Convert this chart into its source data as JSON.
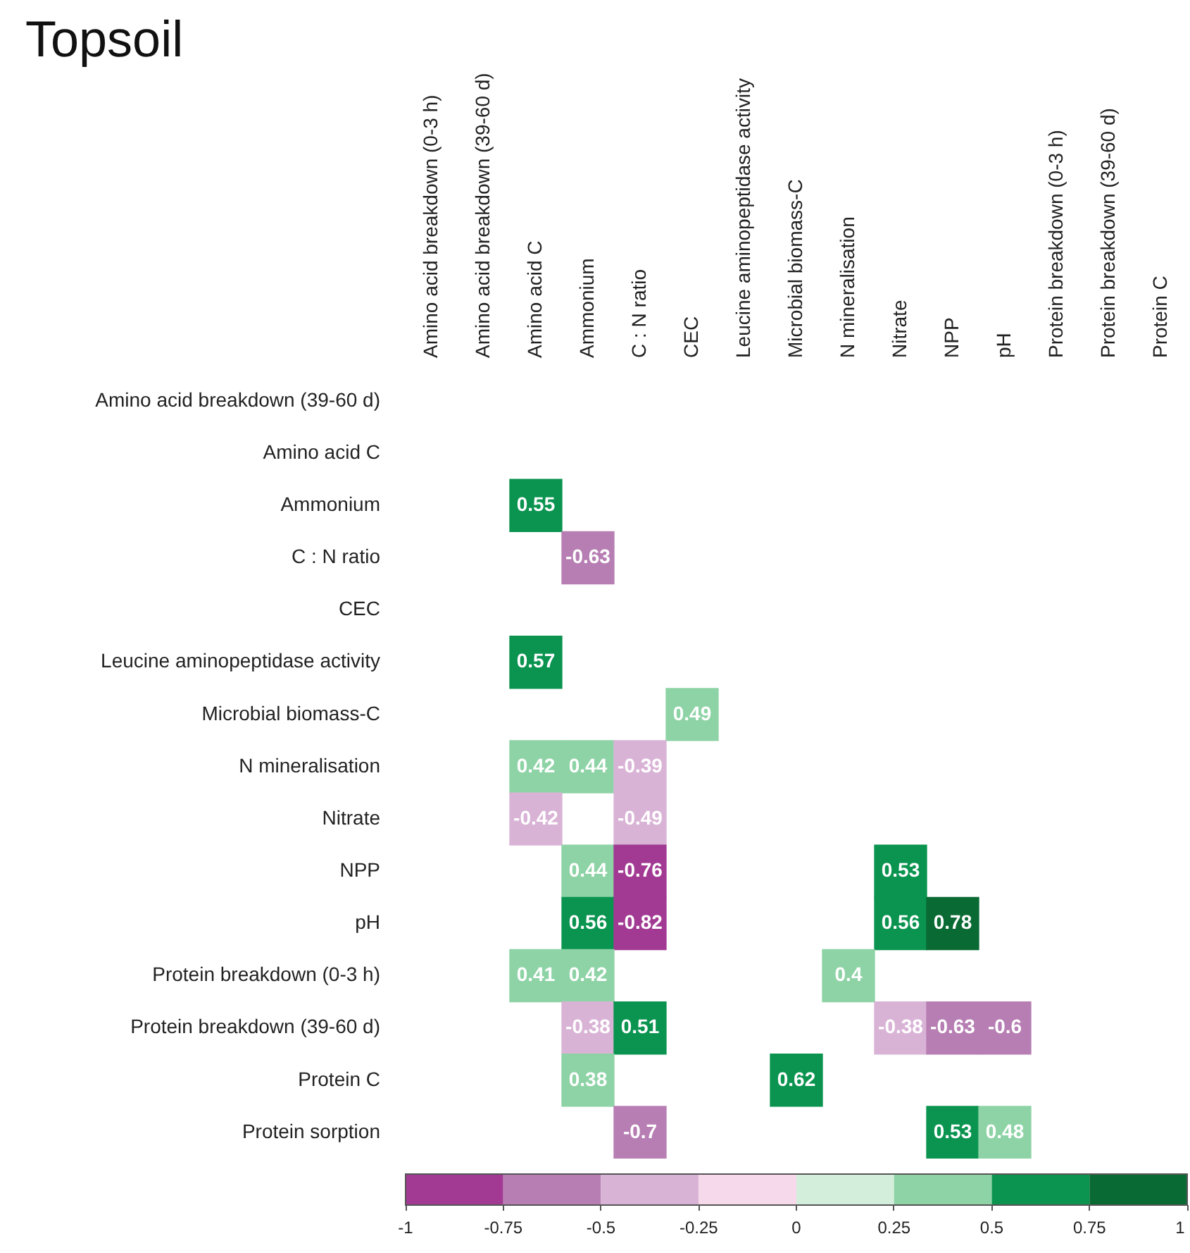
{
  "chart_data": {
    "type": "heatmap",
    "title": "Topsoil",
    "categories": [
      "Amino acid breakdown (0-3 h)",
      "Amino acid breakdown (39-60 d)",
      "Amino acid C",
      "Ammonium",
      "C : N ratio",
      "CEC",
      "Leucine aminopeptidase activity",
      "Microbial biomass-C",
      "N mineralisation",
      "Nitrate",
      "NPP",
      "pH",
      "Protein breakdown (0-3 h)",
      "Protein breakdown (39-60 d)",
      "Protein C"
    ],
    "y_categories": [
      "Amino acid breakdown (39-60 d)",
      "Amino acid C",
      "Ammonium",
      "C : N ratio",
      "CEC",
      "Leucine aminopeptidase activity",
      "Microbial biomass-C",
      "N mineralisation",
      "Nitrate",
      "NPP",
      "pH",
      "Protein breakdown (0-3 h)",
      "Protein breakdown (39-60 d)",
      "Protein C",
      "Protein sorption"
    ],
    "cells": [
      [
        null,
        null,
        null,
        null,
        null,
        null,
        null,
        null,
        null,
        null,
        null,
        null,
        null,
        null,
        null
      ],
      [
        null,
        null,
        null,
        null,
        null,
        null,
        null,
        null,
        null,
        null,
        null,
        null,
        null,
        null,
        null
      ],
      [
        null,
        null,
        0.55,
        null,
        null,
        null,
        null,
        null,
        null,
        null,
        null,
        null,
        null,
        null,
        null
      ],
      [
        null,
        null,
        null,
        -0.63,
        null,
        null,
        null,
        null,
        null,
        null,
        null,
        null,
        null,
        null,
        null
      ],
      [
        null,
        null,
        null,
        null,
        null,
        null,
        null,
        null,
        null,
        null,
        null,
        null,
        null,
        null,
        null
      ],
      [
        null,
        null,
        0.57,
        null,
        null,
        null,
        null,
        null,
        null,
        null,
        null,
        null,
        null,
        null,
        null
      ],
      [
        null,
        null,
        null,
        null,
        null,
        0.49,
        null,
        null,
        null,
        null,
        null,
        null,
        null,
        null,
        null
      ],
      [
        null,
        null,
        0.42,
        0.44,
        -0.39,
        null,
        null,
        null,
        null,
        null,
        null,
        null,
        null,
        null,
        null
      ],
      [
        null,
        null,
        -0.42,
        null,
        -0.49,
        null,
        null,
        null,
        null,
        null,
        null,
        null,
        null,
        null,
        null
      ],
      [
        null,
        null,
        null,
        0.44,
        -0.76,
        null,
        null,
        null,
        null,
        0.53,
        null,
        null,
        null,
        null,
        null
      ],
      [
        null,
        null,
        null,
        0.56,
        -0.82,
        null,
        null,
        null,
        null,
        0.56,
        0.78,
        null,
        null,
        null,
        null
      ],
      [
        null,
        null,
        0.41,
        0.42,
        null,
        null,
        null,
        null,
        0.4,
        null,
        null,
        null,
        null,
        null,
        null
      ],
      [
        null,
        null,
        null,
        -0.38,
        0.51,
        null,
        null,
        null,
        null,
        -0.38,
        -0.63,
        -0.6,
        null,
        null,
        null
      ],
      [
        null,
        null,
        null,
        0.38,
        null,
        null,
        null,
        0.62,
        null,
        null,
        null,
        null,
        null,
        null,
        null
      ],
      [
        null,
        null,
        null,
        null,
        -0.7,
        null,
        null,
        null,
        null,
        null,
        0.53,
        0.48,
        null,
        null,
        null
      ]
    ],
    "clim": [
      -1,
      1
    ],
    "cticks": [
      -1,
      -0.75,
      -0.5,
      -0.25,
      0,
      0.25,
      0.5,
      0.75,
      1
    ],
    "data_labels": true
  }
}
